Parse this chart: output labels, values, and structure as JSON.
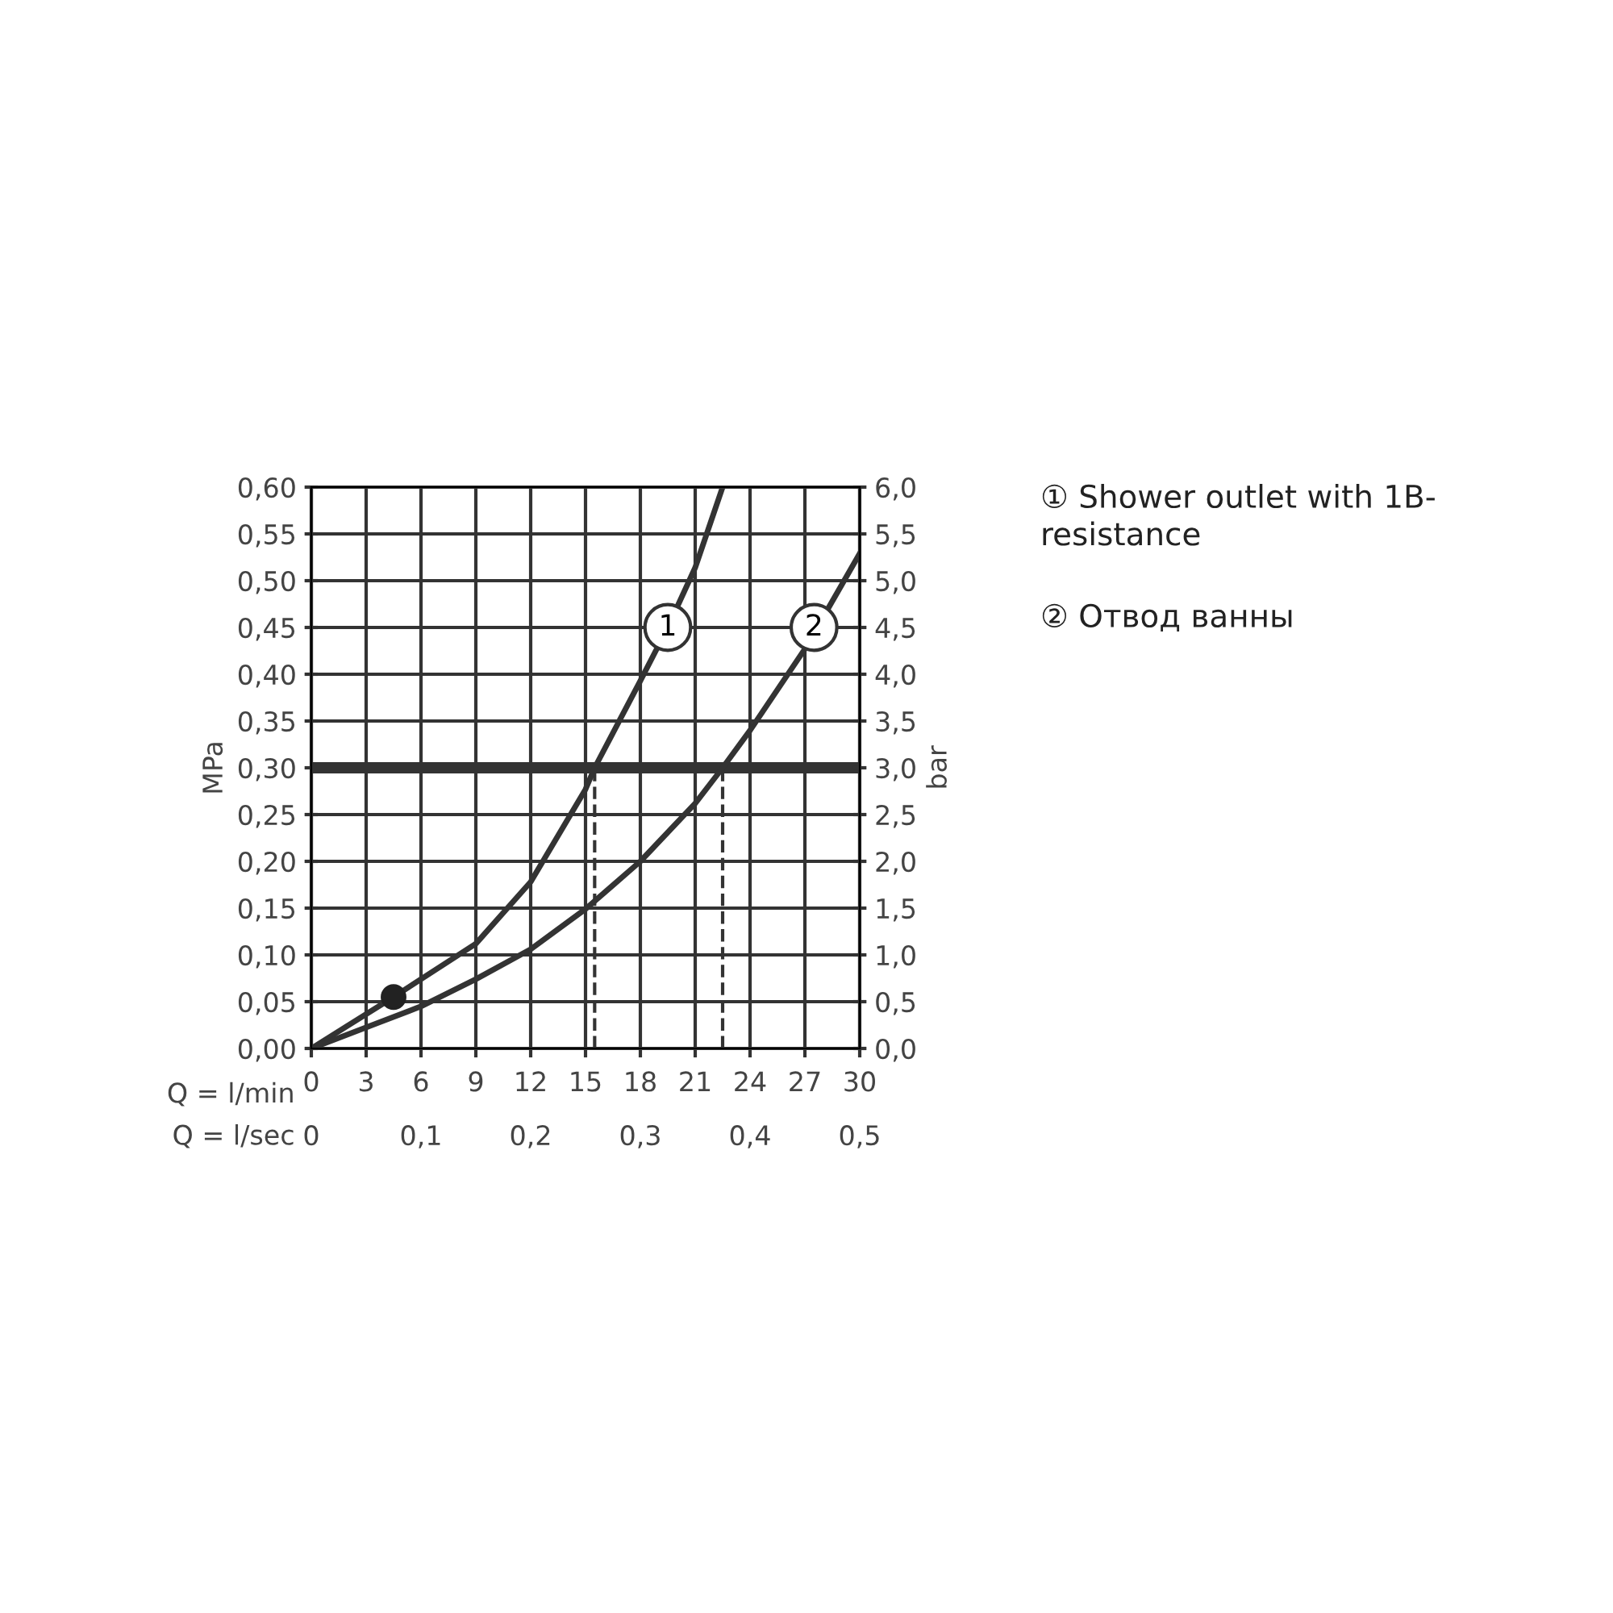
{
  "chart_data": {
    "type": "line",
    "xlabel": "Q = l/min",
    "x2label": "Q = l/sec",
    "ylabel": "MPa",
    "y2label": "bar",
    "xlim": [
      0,
      30
    ],
    "xticks": [
      0,
      3,
      6,
      9,
      12,
      15,
      18,
      21,
      24,
      27,
      30
    ],
    "x2lim": [
      0,
      0.5
    ],
    "x2ticks": [
      0,
      {
        "value": 0.1,
        "label": "0,1"
      },
      {
        "value": 0.2,
        "label": "0,2"
      },
      {
        "value": 0.3,
        "label": "0,3"
      },
      {
        "value": 0.4,
        "label": "0,4"
      },
      {
        "value": 0.5,
        "label": "0,5"
      }
    ],
    "ylim": [
      0,
      0.6
    ],
    "yticks": [
      {
        "value": 0,
        "label": "0,00"
      },
      {
        "value": 0.05,
        "label": "0,05"
      },
      {
        "value": 0.1,
        "label": "0,10"
      },
      {
        "value": 0.15,
        "label": "0,15"
      },
      {
        "value": 0.2,
        "label": "0,20"
      },
      {
        "value": 0.25,
        "label": "0,25"
      },
      {
        "value": 0.3,
        "label": "0,30"
      },
      {
        "value": 0.35,
        "label": "0,35"
      },
      {
        "value": 0.4,
        "label": "0,40"
      },
      {
        "value": 0.45,
        "label": "0,45"
      },
      {
        "value": 0.5,
        "label": "0,50"
      },
      {
        "value": 0.55,
        "label": "0,55"
      },
      {
        "value": 0.6,
        "label": "0,60"
      }
    ],
    "y2lim": [
      0,
      6
    ],
    "y2ticks": [
      {
        "value": 0,
        "label": "0,0"
      },
      {
        "value": 0.5,
        "label": "0,5"
      },
      {
        "value": 1,
        "label": "1,0"
      },
      {
        "value": 1.5,
        "label": "1,5"
      },
      {
        "value": 2,
        "label": "2,0"
      },
      {
        "value": 2.5,
        "label": "2,5"
      },
      {
        "value": 3,
        "label": "3,0"
      },
      {
        "value": 3.5,
        "label": "3,5"
      },
      {
        "value": 4,
        "label": "4,0"
      },
      {
        "value": 4.5,
        "label": "4,5"
      },
      {
        "value": 5,
        "label": "5,0"
      },
      {
        "value": 5.5,
        "label": "5,5"
      },
      {
        "value": 6,
        "label": "6,0"
      }
    ],
    "grid": true,
    "line_style": "solid",
    "series": [
      {
        "color": "#333333",
        "x": [
          0,
          4.5,
          9,
          12,
          15,
          15.5,
          18,
          19.5,
          21,
          22.5
        ],
        "values": [
          0,
          0.055,
          0.112,
          0.178,
          0.277,
          0.3,
          0.393,
          0.45,
          0.514,
          0.6
        ]
      },
      {
        "color": "#333333",
        "x": [
          0,
          6,
          9,
          12,
          15,
          18,
          21,
          22.5,
          24,
          27,
          30
        ],
        "values": [
          0,
          0.045,
          0.074,
          0.106,
          0.149,
          0.2,
          0.262,
          0.3,
          0.34,
          0.427,
          0.529
        ]
      },
      {
        "type": "scatter",
        "marker": "circle",
        "color": "#222222",
        "x": [
          4.5
        ],
        "values": [
          0.055
        ]
      }
    ],
    "ref_lines": [
      {
        "axis": "y",
        "value": 0.3,
        "color": "#333333",
        "line_style": "solid"
      },
      {
        "axis": "x",
        "value": 15.5,
        "color": "#333333",
        "line_style": "dashed"
      },
      {
        "axis": "x",
        "value": 22.5,
        "color": "#333333",
        "line_style": "dashed"
      }
    ],
    "annotations": [
      {
        "text": "1",
        "x": 19.5,
        "y": 0.45
      },
      {
        "text": "2",
        "x": 27.5,
        "y": 0.45
      },
      "① Shower outlet with 1B-\nresistance",
      "② Отвод ванны"
    ]
  }
}
